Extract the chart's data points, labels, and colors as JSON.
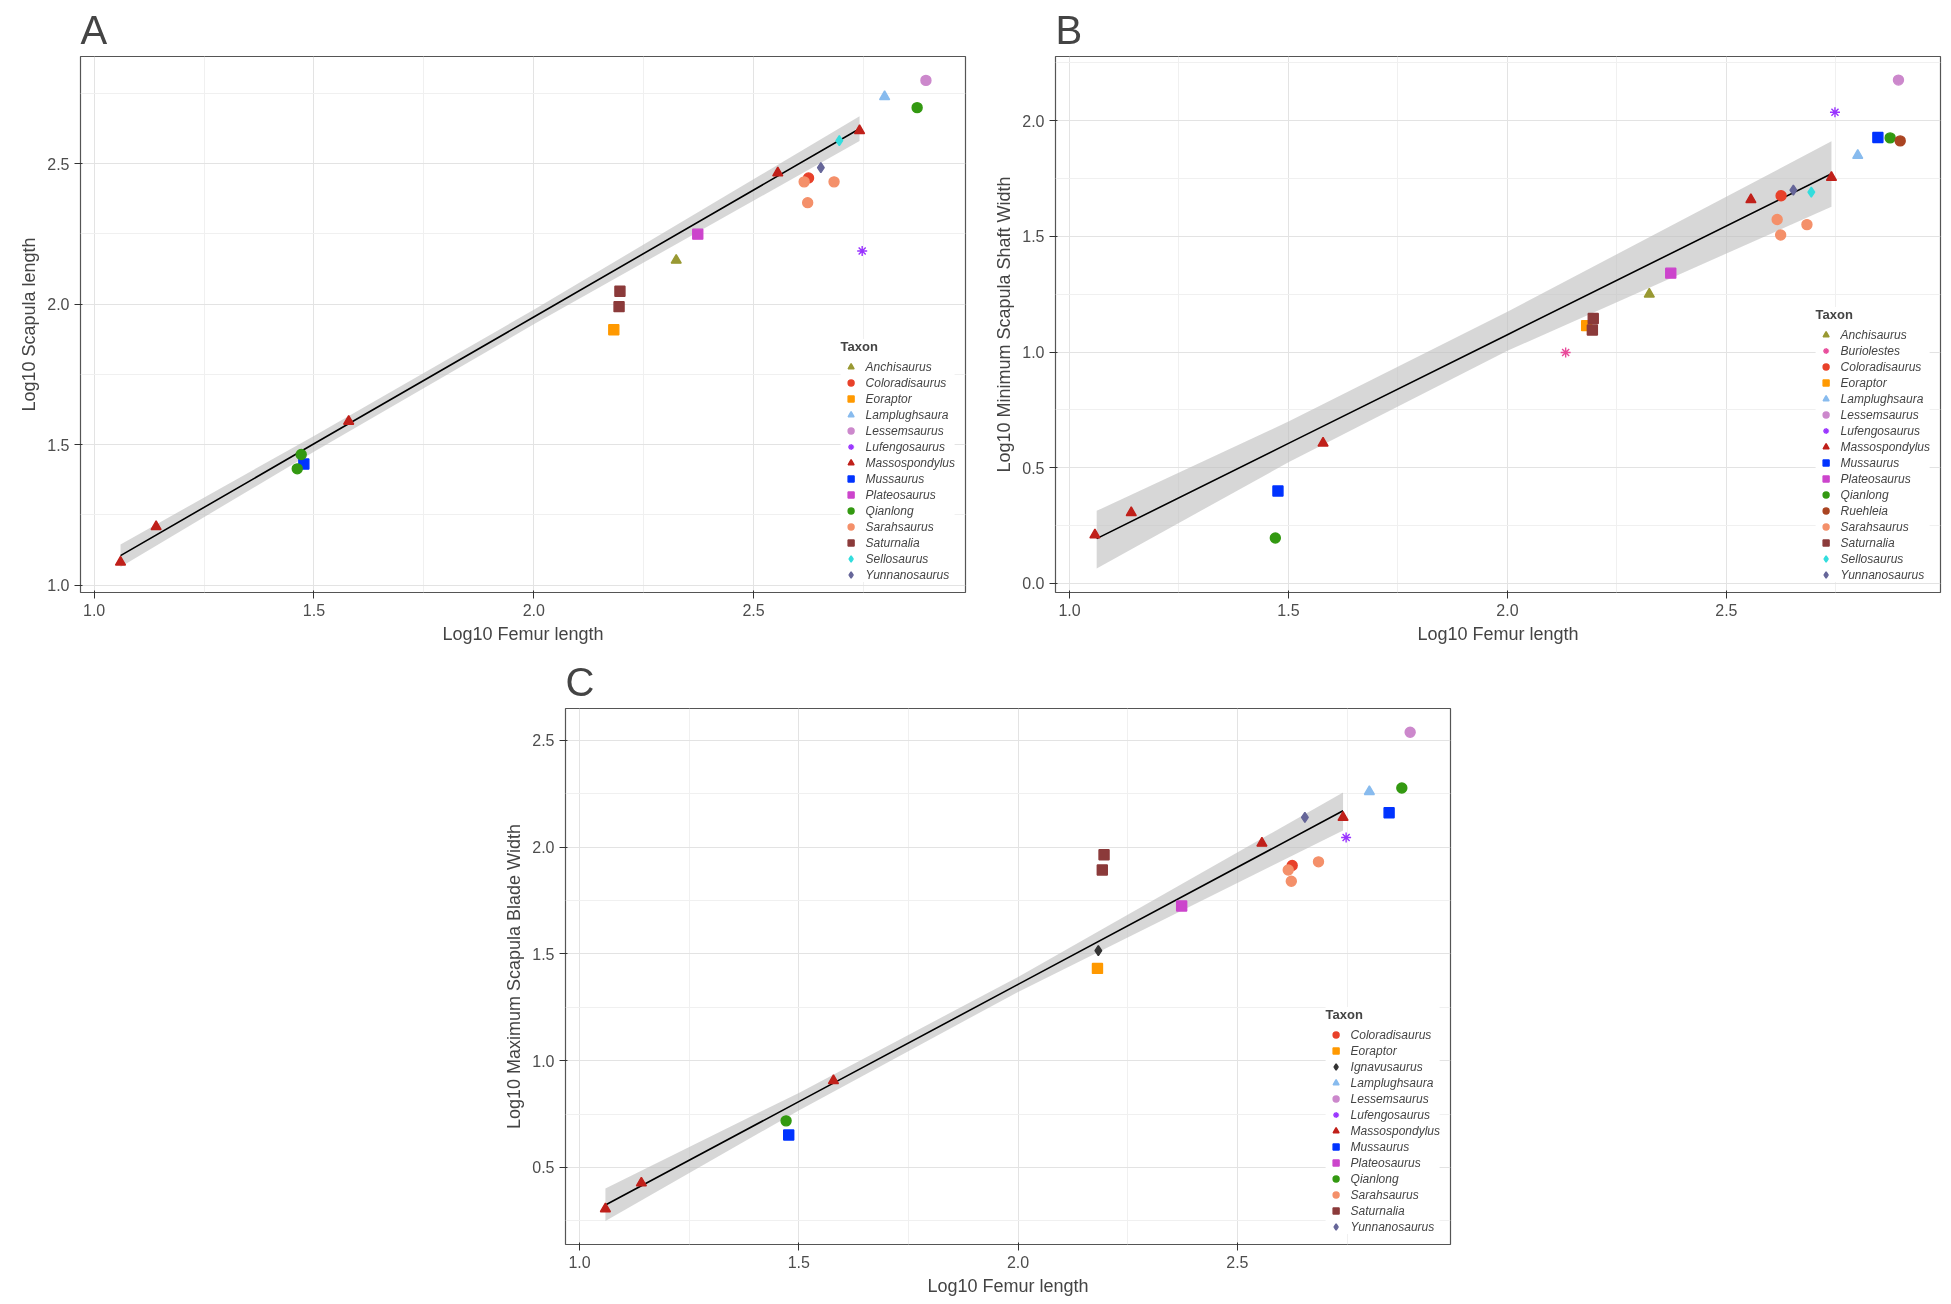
{
  "chart_data": [
    {
      "type": "scatter",
      "title": "A",
      "xlabel": "Log10 Femur length",
      "ylabel": "Log10 Scapula length",
      "legend_title": "Taxon",
      "legend": "bottom right",
      "grid": true,
      "xlim": [
        0.969,
        2.982
      ],
      "ylim": [
        0.974,
        2.881
      ],
      "xticks": [
        {
          "value": 1,
          "label": "1.0"
        },
        {
          "value": 1.5,
          "label": "1.5"
        },
        {
          "value": 2,
          "label": "2.0"
        },
        {
          "value": 2.5,
          "label": "2.5"
        }
      ],
      "yticks": [
        {
          "value": 1,
          "label": "1.0"
        },
        {
          "value": 1.5,
          "label": "1.5"
        },
        {
          "value": 2,
          "label": "2.0"
        },
        {
          "value": 2.5,
          "label": "2.5"
        }
      ],
      "series": [
        {
          "type": "line",
          "color": "#000000",
          "x": [
            1.06,
            1.5,
            2.0,
            2.741
          ],
          "values": [
            1.105,
            1.503,
            1.954,
            2.624
          ],
          "lower": [
            1.065,
            1.475,
            1.928,
            2.58
          ],
          "upper": [
            1.145,
            1.531,
            1.98,
            2.668
          ]
        },
        {
          "name": "Anchisaurus",
          "color": "#999933",
          "marker": "triangle",
          "x": [
            2.324
          ],
          "values": [
            2.156
          ]
        },
        {
          "name": "Coloradisaurus",
          "color": "#e8412a",
          "marker": "circle",
          "x": [
            2.625
          ],
          "values": [
            2.449
          ]
        },
        {
          "name": "Eoraptor",
          "color": "#ff9900",
          "marker": "square",
          "x": [
            2.182
          ],
          "values": [
            1.909
          ]
        },
        {
          "name": "Lamplughsaura",
          "color": "#88bbee",
          "marker": "triangle",
          "x": [
            2.798
          ],
          "values": [
            2.738
          ]
        },
        {
          "name": "Lessemsaurus",
          "color": "#cc88cc",
          "marker": "circle",
          "x": [
            2.892
          ],
          "values": [
            2.796
          ]
        },
        {
          "name": "Lufengosaurus",
          "color": "#9933ff",
          "marker": "cross",
          "x": [
            2.747
          ],
          "values": [
            2.189
          ]
        },
        {
          "name": "Massospondylus",
          "color": "#c0201a",
          "marker": "triangle",
          "x": [
            1.06,
            1.141,
            1.579,
            2.555,
            2.741
          ],
          "values": [
            1.082,
            1.208,
            1.583,
            2.467,
            2.617
          ]
        },
        {
          "name": "Mussaurus",
          "color": "#0033ff",
          "marker": "square",
          "x": [
            1.477
          ],
          "values": [
            1.431
          ]
        },
        {
          "name": "Plateosaurus",
          "color": "#cc44cc",
          "marker": "square",
          "x": [
            2.373
          ],
          "values": [
            2.249
          ]
        },
        {
          "name": "Qianlong",
          "color": "#339911",
          "marker": "circle",
          "x": [
            1.471,
            1.462,
            2.872
          ],
          "values": [
            1.465,
            1.414,
            2.699
          ]
        },
        {
          "name": "Sarahsaurus",
          "color": "#f4906a",
          "marker": "circle",
          "x": [
            2.615,
            2.683,
            2.623
          ],
          "values": [
            2.435,
            2.435,
            2.361
          ]
        },
        {
          "name": "Saturnalia",
          "color": "#8b3a3a",
          "marker": "square",
          "x": [
            2.196,
            2.194
          ],
          "values": [
            2.046,
            1.991
          ]
        },
        {
          "name": "Sellosaurus",
          "color": "#33dddd",
          "marker": "diamond",
          "x": [
            2.695
          ],
          "values": [
            2.582
          ]
        },
        {
          "name": "Yunnanosaurus",
          "color": "#666699",
          "marker": "diamond",
          "x": [
            2.653
          ],
          "values": [
            2.486
          ]
        }
      ]
    },
    {
      "type": "scatter",
      "title": "B",
      "xlabel": "Log10 Femur length",
      "ylabel": "Log10 Minimum Scapula Shaft Width",
      "legend_title": "Taxon",
      "legend": "bottom right",
      "grid": true,
      "xlim": [
        0.968,
        2.989
      ],
      "ylim": [
        -0.04,
        2.278
      ],
      "xticks": [
        {
          "value": 1,
          "label": "1.0"
        },
        {
          "value": 1.5,
          "label": "1.5"
        },
        {
          "value": 2,
          "label": "2.0"
        },
        {
          "value": 2.5,
          "label": "2.5"
        }
      ],
      "yticks": [
        {
          "value": 0,
          "label": "0.0"
        },
        {
          "value": 0.5,
          "label": "0.5"
        },
        {
          "value": 1,
          "label": "1.0"
        },
        {
          "value": 1.5,
          "label": "1.5"
        },
        {
          "value": 2,
          "label": "2.0"
        }
      ],
      "series": [
        {
          "type": "line",
          "color": "#000000",
          "x": [
            1.062,
            1.5,
            2.0,
            2.74
          ],
          "values": [
            0.193,
            0.605,
            1.075,
            1.771
          ],
          "lower": [
            0.064,
            0.523,
            1.005,
            1.628
          ],
          "upper": [
            0.313,
            0.699,
            1.174,
            1.911
          ]
        },
        {
          "name": "Anchisaurus",
          "color": "#999933",
          "marker": "triangle",
          "x": [
            2.324
          ],
          "values": [
            1.25
          ]
        },
        {
          "name": "Buriolestes",
          "color": "#e84a9a",
          "marker": "cross",
          "x": [
            2.133
          ],
          "values": [
            0.998
          ]
        },
        {
          "name": "Coloradisaurus",
          "color": "#e8412a",
          "marker": "circle",
          "x": [
            2.625
          ],
          "values": [
            1.676
          ]
        },
        {
          "name": "Eoraptor",
          "color": "#ff9900",
          "marker": "square",
          "x": [
            2.181
          ],
          "values": [
            1.114
          ]
        },
        {
          "name": "Lamplughsaura",
          "color": "#88bbee",
          "marker": "triangle",
          "x": [
            2.8
          ],
          "values": [
            1.85
          ]
        },
        {
          "name": "Lessemsaurus",
          "color": "#cc88cc",
          "marker": "circle",
          "x": [
            2.893
          ],
          "values": [
            2.176
          ]
        },
        {
          "name": "Lufengosaurus",
          "color": "#9933ff",
          "marker": "cross",
          "x": [
            2.748
          ],
          "values": [
            2.037
          ]
        },
        {
          "name": "Massospondylus",
          "color": "#c0201a",
          "marker": "triangle",
          "x": [
            1.058,
            1.141,
            1.579,
            2.556,
            2.74
          ],
          "values": [
            0.209,
            0.305,
            0.606,
            1.659,
            1.755
          ]
        },
        {
          "name": "Mussaurus",
          "color": "#0033ff",
          "marker": "square",
          "x": [
            1.476,
            2.846
          ],
          "values": [
            0.399,
            1.928
          ]
        },
        {
          "name": "Plateosaurus",
          "color": "#cc44cc",
          "marker": "square",
          "x": [
            2.373
          ],
          "values": [
            1.341
          ]
        },
        {
          "name": "Qianlong",
          "color": "#339911",
          "marker": "circle",
          "x": [
            1.47,
            2.874
          ],
          "values": [
            0.196,
            1.926
          ]
        },
        {
          "name": "Ruehleia",
          "color": "#aa4422",
          "marker": "circle",
          "x": [
            2.897
          ],
          "values": [
            1.913
          ]
        },
        {
          "name": "Sarahsaurus",
          "color": "#f4906a",
          "marker": "circle",
          "x": [
            2.616,
            2.684,
            2.624
          ],
          "values": [
            1.573,
            1.551,
            1.506
          ]
        },
        {
          "name": "Saturnalia",
          "color": "#8b3a3a",
          "marker": "square",
          "x": [
            2.196,
            2.194
          ],
          "values": [
            1.145,
            1.095
          ]
        },
        {
          "name": "Sellosaurus",
          "color": "#33dddd",
          "marker": "diamond",
          "x": [
            2.694
          ],
          "values": [
            1.691
          ]
        },
        {
          "name": "Yunnanosaurus",
          "color": "#666699",
          "marker": "diamond",
          "x": [
            2.653
          ],
          "values": [
            1.7
          ]
        }
      ]
    },
    {
      "type": "scatter",
      "title": "C",
      "xlabel": "Log10 Femur length",
      "ylabel": "Log10 Maximum Scapula Blade Width",
      "legend_title": "Taxon",
      "legend": "bottom right",
      "grid": true,
      "xlim": [
        0.968,
        2.986
      ],
      "ylim": [
        0.139,
        2.649
      ],
      "xticks": [
        {
          "value": 1,
          "label": "1.0"
        },
        {
          "value": 1.5,
          "label": "1.5"
        },
        {
          "value": 2,
          "label": "2.0"
        },
        {
          "value": 2.5,
          "label": "2.5"
        }
      ],
      "yticks": [
        {
          "value": 0.5,
          "label": "0.5"
        },
        {
          "value": 1,
          "label": "1.0"
        },
        {
          "value": 1.5,
          "label": "1.5"
        },
        {
          "value": 2,
          "label": "2.0"
        },
        {
          "value": 2.5,
          "label": "2.5"
        }
      ],
      "series": [
        {
          "type": "line",
          "color": "#000000",
          "x": [
            1.059,
            1.5,
            2.0,
            2.741
          ],
          "values": [
            0.324,
            0.808,
            1.357,
            2.17
          ],
          "lower": [
            0.249,
            0.767,
            1.322,
            2.078
          ],
          "upper": [
            0.401,
            0.849,
            1.392,
            2.256
          ]
        },
        {
          "name": "Coloradisaurus",
          "color": "#e8412a",
          "marker": "circle",
          "x": [
            2.625
          ],
          "values": [
            1.914
          ]
        },
        {
          "name": "Eoraptor",
          "color": "#ff9900",
          "marker": "square",
          "x": [
            2.181
          ],
          "values": [
            1.432
          ]
        },
        {
          "name": "Ignavusaurus",
          "color": "#333333",
          "marker": "diamond",
          "x": [
            2.183
          ],
          "values": [
            1.515
          ]
        },
        {
          "name": "Lamplughsaura",
          "color": "#88bbee",
          "marker": "triangle",
          "x": [
            2.801
          ],
          "values": [
            2.26
          ]
        },
        {
          "name": "Lessemsaurus",
          "color": "#cc88cc",
          "marker": "circle",
          "x": [
            2.894
          ],
          "values": [
            2.538
          ]
        },
        {
          "name": "Lufengosaurus",
          "color": "#9933ff",
          "marker": "cross",
          "x": [
            2.748
          ],
          "values": [
            2.045
          ]
        },
        {
          "name": "Massospondylus",
          "color": "#c0201a",
          "marker": "triangle",
          "x": [
            1.059,
            1.141,
            1.579,
            2.556,
            2.741
          ],
          "values": [
            0.306,
            0.427,
            0.906,
            2.018,
            2.139
          ]
        },
        {
          "name": "Mussaurus",
          "color": "#0033ff",
          "marker": "square",
          "x": [
            1.477,
            2.846
          ],
          "values": [
            0.652,
            2.161
          ]
        },
        {
          "name": "Plateosaurus",
          "color": "#cc44cc",
          "marker": "square",
          "x": [
            2.373
          ],
          "values": [
            1.724
          ]
        },
        {
          "name": "Qianlong",
          "color": "#339911",
          "marker": "circle",
          "x": [
            1.471,
            2.875
          ],
          "values": [
            0.718,
            2.277
          ]
        },
        {
          "name": "Sarahsaurus",
          "color": "#f4906a",
          "marker": "circle",
          "x": [
            2.616,
            2.685,
            2.623
          ],
          "values": [
            1.893,
            1.931,
            1.84
          ]
        },
        {
          "name": "Saturnalia",
          "color": "#8b3a3a",
          "marker": "square",
          "x": [
            2.196,
            2.192
          ],
          "values": [
            1.964,
            1.893
          ]
        },
        {
          "name": "Yunnanosaurus",
          "color": "#666699",
          "marker": "diamond",
          "x": [
            2.654
          ],
          "values": [
            2.139
          ]
        }
      ]
    }
  ]
}
